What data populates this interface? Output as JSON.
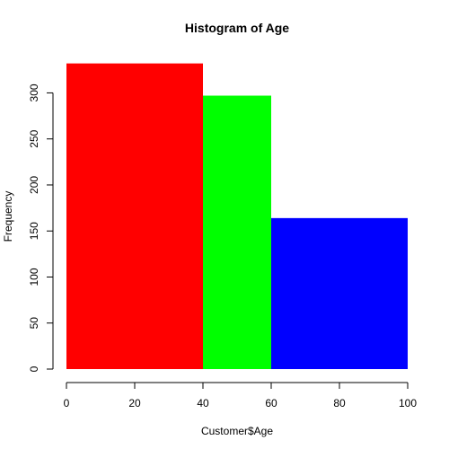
{
  "chart_data": {
    "type": "bar",
    "title": "Histogram of Age",
    "xlabel": "Customer$Age",
    "ylabel": "Frequency",
    "xlim": [
      0,
      100
    ],
    "ylim": [
      0,
      330
    ],
    "xticks": [
      0,
      20,
      40,
      60,
      80,
      100
    ],
    "yticks": [
      0,
      50,
      100,
      150,
      200,
      250,
      300
    ],
    "bins": [
      {
        "start": 0,
        "end": 40,
        "value": 332,
        "color": "#ff0000"
      },
      {
        "start": 40,
        "end": 60,
        "value": 297,
        "color": "#00ff00"
      },
      {
        "start": 60,
        "end": 100,
        "value": 164,
        "color": "#0000ff"
      }
    ],
    "grid": false,
    "legend": "none"
  }
}
